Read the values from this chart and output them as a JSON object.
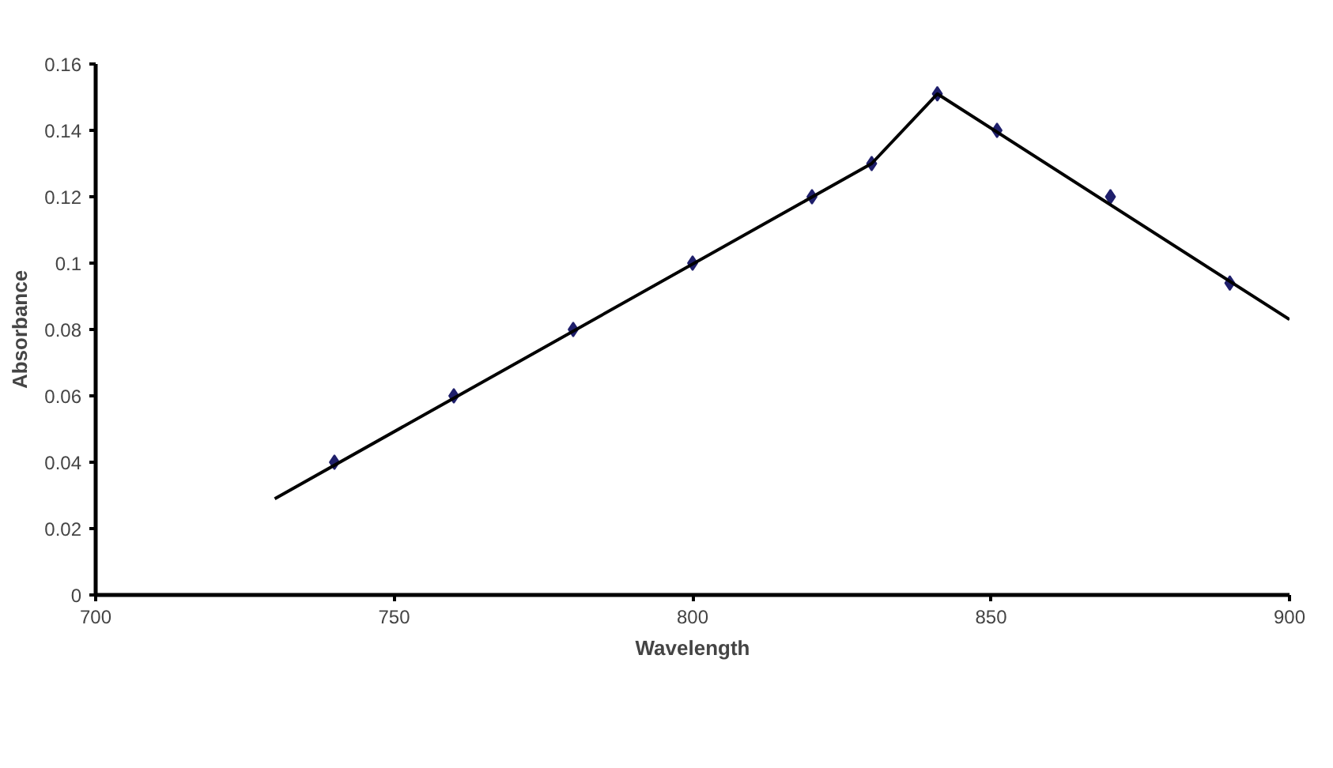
{
  "chart_data": {
    "type": "scatter",
    "xlabel": "Wavelength",
    "ylabel": "Absorbance",
    "xlim": [
      700,
      900
    ],
    "ylim": [
      0,
      0.16
    ],
    "xticks": [
      700,
      750,
      800,
      850,
      900
    ],
    "yticks": [
      0,
      0.02,
      0.04,
      0.06,
      0.08,
      {
        "value": 0.1,
        "label": "0.1"
      },
      0.12,
      0.14,
      0.16
    ],
    "grid": false,
    "marker": "diamond",
    "series": [
      {
        "color": "#1f1f6b",
        "x": [
          740,
          760,
          780,
          800,
          820,
          830,
          841,
          851,
          870,
          890
        ],
        "values": [
          0.04,
          0.06,
          0.08,
          0.1,
          0.12,
          0.13,
          0.151,
          0.14,
          0.12,
          0.094
        ]
      },
      {
        "type": "line",
        "color": "#000000",
        "x": [
          730,
          830,
          841,
          900
        ],
        "values": [
          0.029,
          0.13,
          0.151,
          0.083
        ],
        "marker": "none"
      }
    ]
  }
}
